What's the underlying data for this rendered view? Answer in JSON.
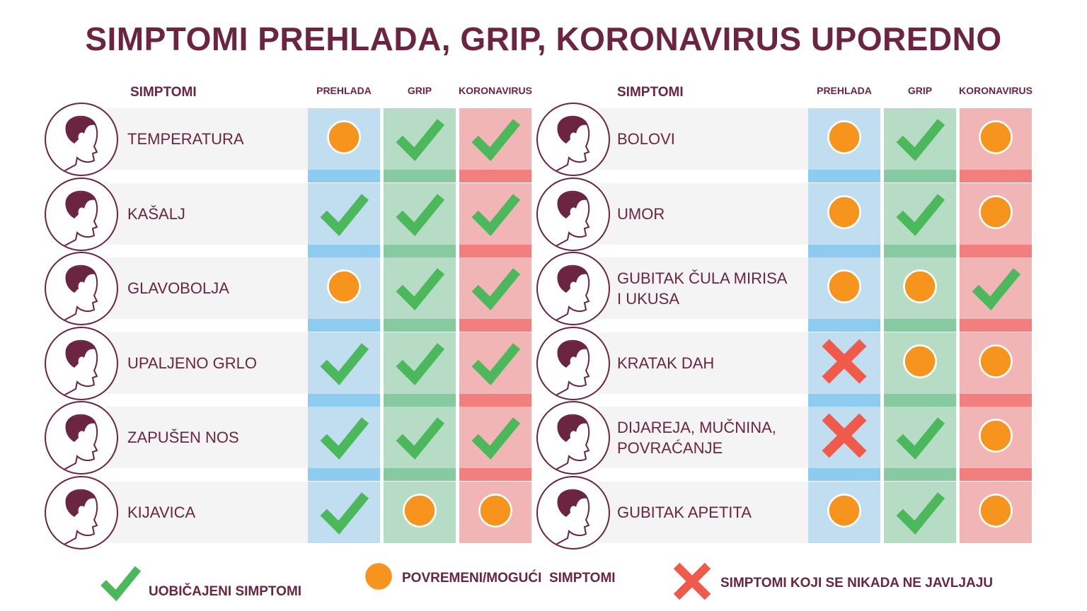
{
  "title": "SIMPTOMI PREHLADA, GRIP, KORONAVIRUS UPOREDNO",
  "headers": {
    "symptoms": "SIMPTOMI",
    "cold": "PREHLADA",
    "flu": "GRIP",
    "corona": "KORONAVIRUS"
  },
  "colors": {
    "text": "#6b2541",
    "check": "#4cb85c",
    "circle": "#f7941d",
    "cross": "#f05a4a",
    "cold_col": "#c1ddf0",
    "cold_strip": "#8ecbf0",
    "flu_col": "#b7dcc6",
    "flu_strip": "#87c9a0",
    "corona_col": "#f1b5b5",
    "corona_strip": "#f27e7e"
  },
  "left": [
    {
      "label": "TEMPERATURA",
      "icon": "fever-face-icon",
      "values": [
        "occasional",
        "common",
        "common"
      ]
    },
    {
      "label": "KAŠALJ",
      "icon": "cough-face-icon",
      "values": [
        "common",
        "common",
        "common"
      ]
    },
    {
      "label": "GLAVOBOLJA",
      "icon": "headache-face-icon",
      "values": [
        "occasional",
        "common",
        "common"
      ]
    },
    {
      "label": "UPALJENO GRLO",
      "icon": "sore-throat-face-icon",
      "values": [
        "common",
        "common",
        "common"
      ]
    },
    {
      "label": "ZAPUŠEN NOS",
      "icon": "stuffy-nose-face-icon",
      "values": [
        "common",
        "common",
        "common"
      ]
    },
    {
      "label": "KIJAVICA",
      "icon": "sneeze-face-icon",
      "values": [
        "common",
        "occasional",
        "occasional"
      ]
    }
  ],
  "right": [
    {
      "label": "BOLOVI",
      "icon": "pain-face-icon",
      "values": [
        "occasional",
        "common",
        "occasional"
      ]
    },
    {
      "label": "UMOR",
      "icon": "tired-face-icon",
      "values": [
        "occasional",
        "common",
        "occasional"
      ]
    },
    {
      "label": "GUBITAK ČULA MIRISA I UKUSA",
      "icon": "smell-loss-face-icon",
      "values": [
        "occasional",
        "occasional",
        "common"
      ]
    },
    {
      "label": "KRATAK DAH",
      "icon": "breath-face-icon",
      "values": [
        "never",
        "occasional",
        "occasional"
      ]
    },
    {
      "label": "DIJAREJA, MUČNINA, POVRAĆANJE",
      "icon": "toilet-paper-icon",
      "values": [
        "never",
        "common",
        "occasional"
      ]
    },
    {
      "label": "GUBITAK APETITA",
      "icon": "plate-cutlery-icon",
      "values": [
        "occasional",
        "common",
        "occasional"
      ]
    }
  ],
  "legend": {
    "common": "UOBIČAJENI SIMPTOMI",
    "occasional": "POVREMENI/MOGUĆI  SIMPTOMI",
    "never": "SIMPTOMI KOJI SE NIKADA NE JAVLJAJU"
  }
}
